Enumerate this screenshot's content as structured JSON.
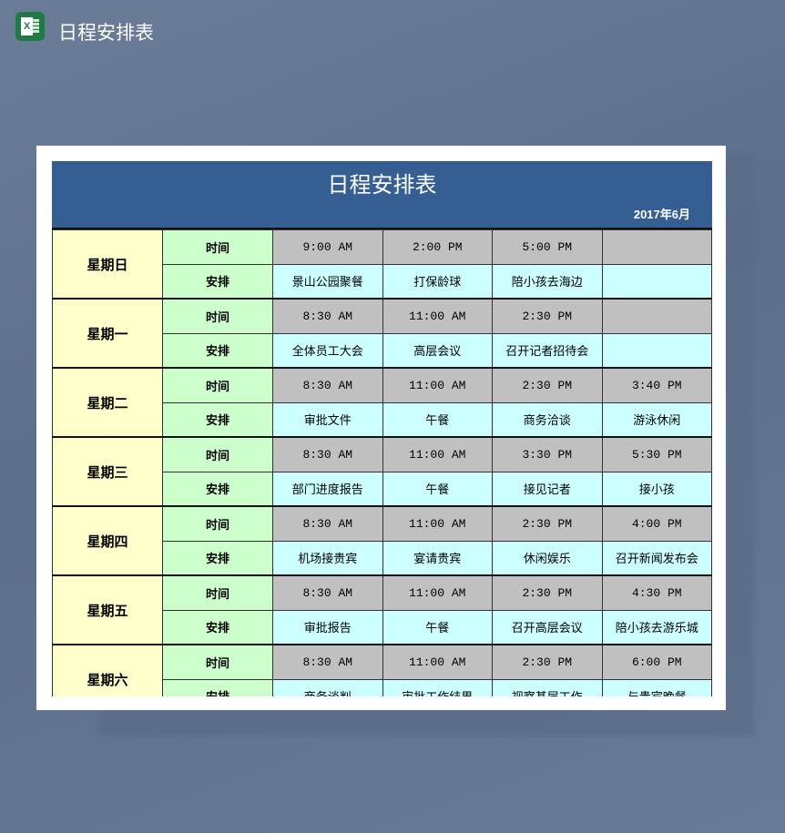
{
  "app": {
    "title": "日程安排表",
    "icon": "excel-icon"
  },
  "sheet": {
    "title": "日程安排表",
    "date": "2017年6月",
    "time_label": "时间",
    "plan_label": "安排",
    "colors": {
      "header": "#355f92",
      "day": "#ffffcc",
      "label": "#ccffcc",
      "time": "#c0c0c0",
      "plan": "#ccffff"
    },
    "days": [
      {
        "day": "星期日",
        "times": [
          "9:00 AM",
          "2:00 PM",
          "5:00 PM",
          ""
        ],
        "plans": [
          "景山公园聚餐",
          "打保龄球",
          "陪小孩去海边",
          ""
        ]
      },
      {
        "day": "星期一",
        "times": [
          "8:30 AM",
          "11:00 AM",
          "2:30 PM",
          ""
        ],
        "plans": [
          "全体员工大会",
          "高层会议",
          "召开记者招待会",
          ""
        ]
      },
      {
        "day": "星期二",
        "times": [
          "8:30 AM",
          "11:00 AM",
          "2:30 PM",
          "3:40 PM"
        ],
        "plans": [
          "审批文件",
          "午餐",
          "商务洽谈",
          "游泳休闲"
        ]
      },
      {
        "day": "星期三",
        "times": [
          "8:30 AM",
          "11:00 AM",
          "3:30 PM",
          "5:30 PM"
        ],
        "plans": [
          "部门进度报告",
          "午餐",
          "接见记者",
          "接小孩"
        ]
      },
      {
        "day": "星期四",
        "times": [
          "8:30 AM",
          "11:00 AM",
          "2:30 PM",
          "4:00 PM"
        ],
        "plans": [
          "机场接贵宾",
          "宴请贵宾",
          "休闲娱乐",
          "召开新闻发布会"
        ]
      },
      {
        "day": "星期五",
        "times": [
          "8:30 AM",
          "11:00 AM",
          "2:30 PM",
          "4:30 PM"
        ],
        "plans": [
          "审批报告",
          "午餐",
          "召开高层会议",
          "陪小孩去游乐城"
        ]
      },
      {
        "day": "星期六",
        "times": [
          "8:30 AM",
          "11:00 AM",
          "2:30 PM",
          "6:00 PM"
        ],
        "plans": [
          "商务谈判",
          "审批工作结果",
          "视察基层工作",
          "与贵宾晚餐"
        ]
      }
    ]
  }
}
